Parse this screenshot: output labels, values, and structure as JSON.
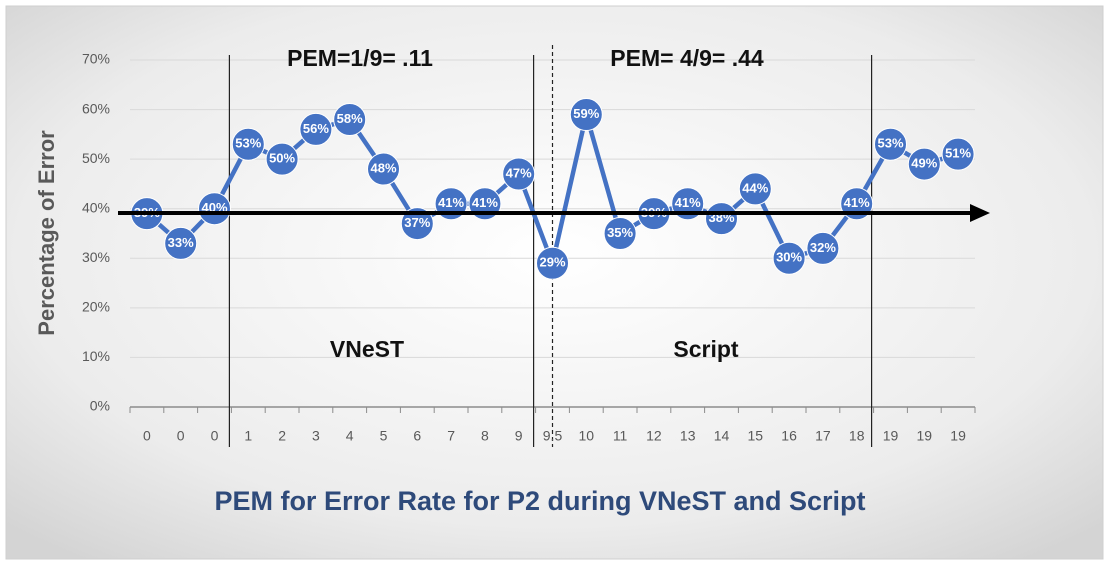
{
  "chart_data": {
    "type": "line",
    "title": "PEM for Error Rate for P2 during VNeST and Script",
    "y_label": "Percentage of Error",
    "annotations": [
      "PEM=1/9= .11",
      "PEM= 4/9= .44",
      "VNeST",
      "Script"
    ],
    "categories": [
      "0",
      "0",
      "0",
      "1",
      "2",
      "3",
      "4",
      "5",
      "6",
      "7",
      "8",
      "9",
      "9.5",
      "10",
      "11",
      "12",
      "13",
      "14",
      "15",
      "16",
      "17",
      "18",
      "19",
      "19",
      "19"
    ],
    "values": [
      39,
      33,
      40,
      53,
      50,
      56,
      58,
      48,
      37,
      41,
      41,
      47,
      29,
      59,
      35,
      39,
      41,
      38,
      44,
      30,
      32,
      41,
      53,
      49,
      51
    ],
    "value_labels": [
      "39%",
      "33%",
      "40%",
      "53%",
      "50%",
      "56%",
      "58%",
      "48%",
      "37%",
      "41%",
      "41%",
      "47%",
      "29%",
      "59%",
      "35%",
      "39%",
      "41%",
      "38%",
      "44%",
      "30%",
      "32%",
      "41%",
      "53%",
      "49%",
      "51%"
    ],
    "color": "#4472c4",
    "ylim": [
      0,
      70
    ],
    "yticks": [
      {
        "value": 0,
        "label": "0%"
      },
      {
        "value": 10,
        "label": "10%"
      },
      {
        "value": 20,
        "label": "20%"
      },
      {
        "value": 30,
        "label": "30%"
      },
      {
        "value": 40,
        "label": "40%"
      },
      {
        "value": 50,
        "label": "50%"
      },
      {
        "value": 60,
        "label": "60%"
      },
      {
        "value": 70,
        "label": "70%"
      }
    ],
    "grid": true
  }
}
